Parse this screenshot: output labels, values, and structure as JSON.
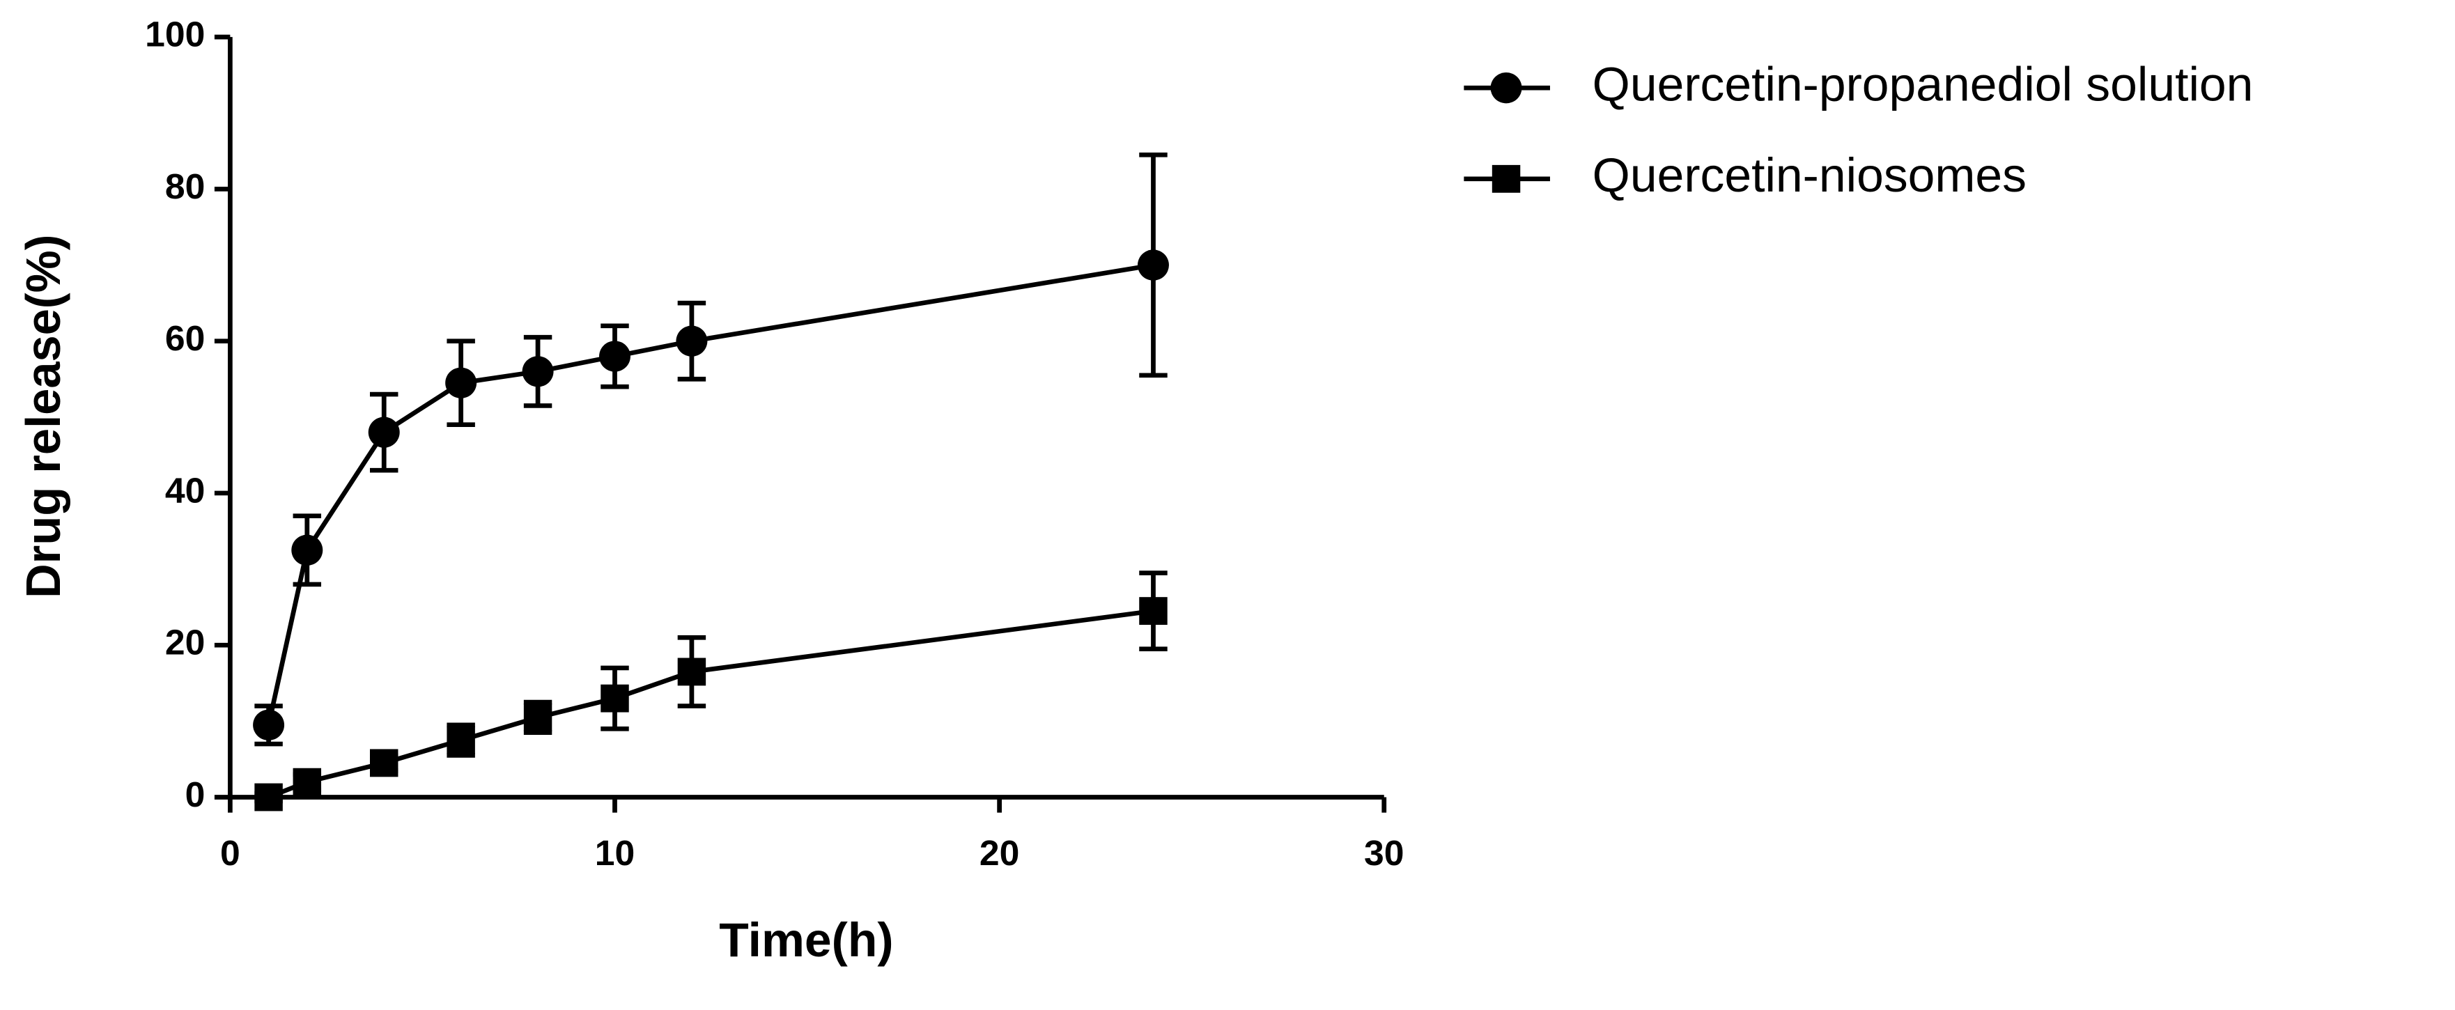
{
  "chart_data": {
    "type": "line",
    "x_label": "Time(h)",
    "y_label": "Drug release(%)",
    "x": [
      1,
      2,
      4,
      6,
      8,
      10,
      12,
      24
    ],
    "series": [
      {
        "name": "Quercetin-propanediol solution",
        "color": "#000000",
        "marker": "circle",
        "values": [
          9.5,
          32.5,
          48,
          54.5,
          56,
          58,
          60,
          70
        ],
        "errors": [
          2.5,
          4.5,
          5,
          5.5,
          4.5,
          4,
          5,
          14.5
        ]
      },
      {
        "name": "Quercetin-niosomes",
        "color": "#000000",
        "marker": "square",
        "values": [
          0,
          2,
          4.5,
          7.5,
          10.5,
          13,
          16.5,
          24.5
        ],
        "errors": [
          0.5,
          1,
          1,
          2,
          2,
          4,
          4.5,
          5
        ]
      }
    ],
    "xlim": [
      0,
      30
    ],
    "xticks": [
      0,
      10,
      20,
      30
    ],
    "ylim": [
      0,
      100
    ],
    "yticks": [
      0,
      20,
      40,
      60,
      80,
      100
    ],
    "legend": "upper right outside"
  }
}
